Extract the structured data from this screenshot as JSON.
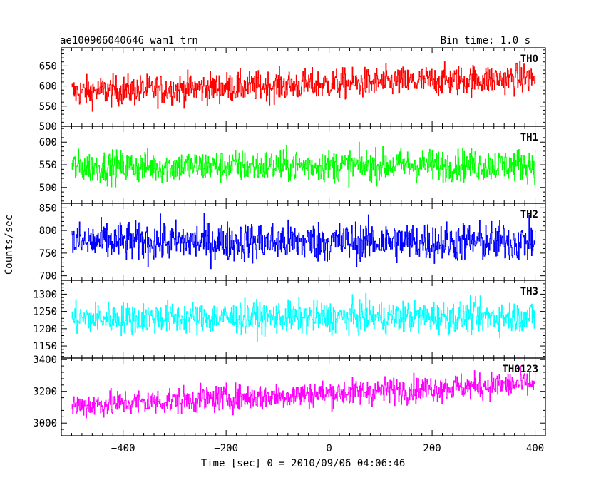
{
  "header": {
    "title": "ae100906040646_wam1_trn",
    "bin_time": "Bin time: 1.0 s"
  },
  "chart_data": {
    "type": "line",
    "xlabel": "Time [sec] 0 = 2010/09/06 04:06:46",
    "ylabel": "Counts/sec",
    "xlim": [
      -520,
      420
    ],
    "x_ticks": [
      -400,
      -200,
      0,
      200,
      400
    ],
    "x_tick_labels": [
      "−400",
      "−200",
      "0",
      "200",
      "400"
    ],
    "x_range": [
      -500,
      400
    ],
    "panels": [
      {
        "name": "TH0",
        "color": "#ff0000",
        "ylim": [
          500,
          695
        ],
        "y_ticks": [
          500,
          550,
          600,
          650
        ],
        "y_tick_labels": [
          "500",
          "550",
          "600",
          "650"
        ],
        "mean_start": 585,
        "mean_end": 620,
        "spread": 36
      },
      {
        "name": "TH1",
        "color": "#00ff00",
        "ylim": [
          465,
          635
        ],
        "y_ticks": [
          500,
          550,
          600
        ],
        "y_tick_labels": [
          "500",
          "550",
          "600"
        ],
        "mean_start": 545,
        "mean_end": 550,
        "spread": 34
      },
      {
        "name": "TH2",
        "color": "#0000ff",
        "ylim": [
          690,
          860
        ],
        "y_ticks": [
          700,
          750,
          800,
          850
        ],
        "y_tick_labels": [
          "700",
          "750",
          "800",
          "850"
        ],
        "mean_start": 775,
        "mean_end": 775,
        "spread": 42
      },
      {
        "name": "TH3",
        "color": "#00ffff",
        "ylim": [
          1115,
          1340
        ],
        "y_ticks": [
          1150,
          1200,
          1250,
          1300
        ],
        "y_tick_labels": [
          "1150",
          "1200",
          "1250",
          "1300"
        ],
        "mean_start": 1230,
        "mean_end": 1235,
        "spread": 44
      },
      {
        "name": "TH0123",
        "color": "#ff00ff",
        "ylim": [
          2920,
          3410
        ],
        "y_ticks": [
          3000,
          3200,
          3400
        ],
        "y_tick_labels": [
          "3000",
          "3200",
          "3400"
        ],
        "mean_start": 3110,
        "mean_end": 3250,
        "spread": 80
      }
    ]
  }
}
